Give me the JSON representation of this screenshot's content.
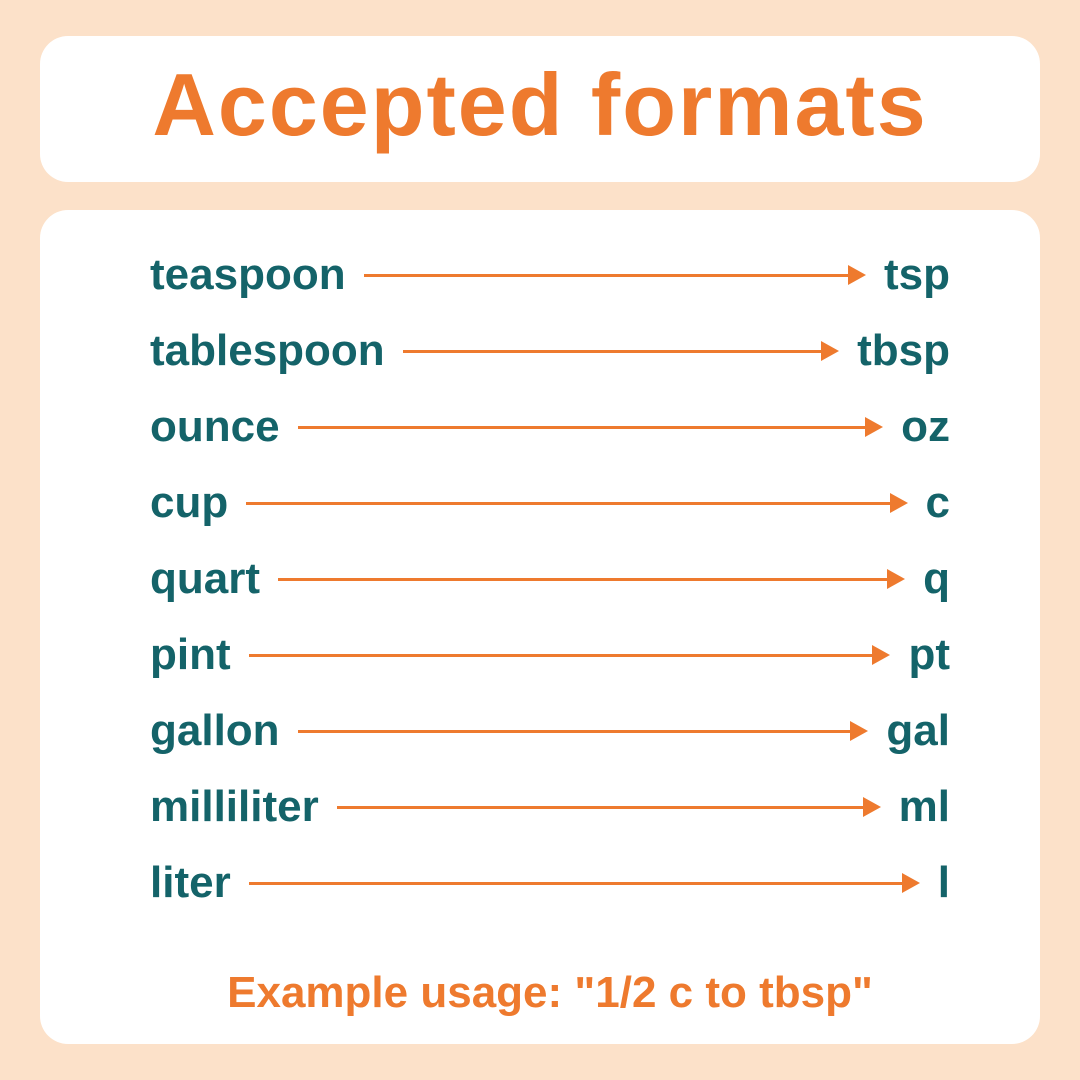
{
  "title": "Accepted formats",
  "colors": {
    "background": "#fce1c9",
    "card_bg": "#ffffff",
    "accent": "#ee7a2e",
    "text": "#146369",
    "arrow": "#ee7a2e"
  },
  "typography": {
    "title_fontsize": 88,
    "row_fontsize": 44,
    "example_fontsize": 44,
    "font_weight": 700
  },
  "arrow_style": {
    "line_width": 3,
    "head_length": 18,
    "head_width": 20
  },
  "layout": {
    "card_radius": 28,
    "outer_padding": [
      36,
      40
    ],
    "body_padding": [
      40,
      90,
      26,
      110
    ],
    "row_gap": 26
  },
  "rows": [
    {
      "long": "teaspoon",
      "short": "tsp"
    },
    {
      "long": "tablespoon",
      "short": "tbsp"
    },
    {
      "long": "ounce",
      "short": "oz"
    },
    {
      "long": "cup",
      "short": "c"
    },
    {
      "long": "quart",
      "short": "q"
    },
    {
      "long": "pint",
      "short": "pt"
    },
    {
      "long": "gallon",
      "short": "gal"
    },
    {
      "long": "milliliter",
      "short": "ml"
    },
    {
      "long": "liter",
      "short": "l"
    }
  ],
  "example": "Example usage: \"1/2 c to tbsp\""
}
